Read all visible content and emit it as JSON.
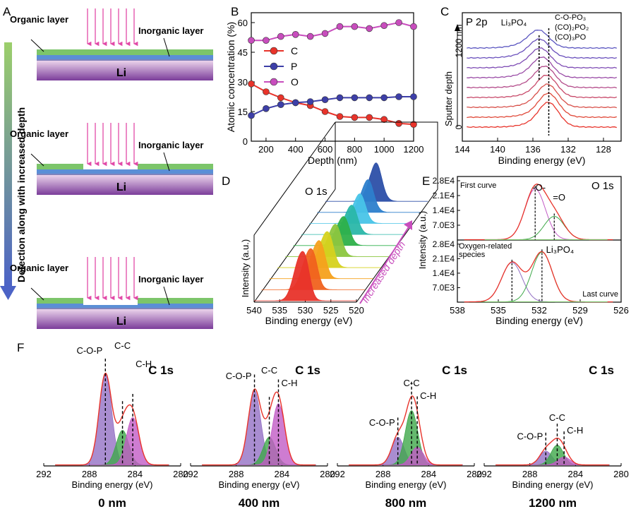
{
  "figure": {
    "panel_letters": {
      "A": "A",
      "B": "B",
      "C": "C",
      "D": "D",
      "E": "E",
      "F": "F"
    },
    "panel_a": {
      "arrow_label": "Detection along with increased depth",
      "organic_label": "Organic layer",
      "inorganic_label": "Inorganic layer",
      "li_label": "Li",
      "colors": {
        "organic": "#7cc56a",
        "inorganic": "#5b8fd6",
        "li_top": "#f0d8ef",
        "li_bottom": "#7c3c9a",
        "probe": "#e24aa8",
        "arrow": "#5b6fc9"
      }
    }
  },
  "chart_data": [
    {
      "panel": "B",
      "type": "line",
      "xlabel": "Depth (nm)",
      "ylabel": "Atomic concentration (%)",
      "xlim": [
        100,
        1200
      ],
      "ylim": [
        0,
        65
      ],
      "xticks": [
        "200",
        "400",
        "600",
        "800",
        "1000",
        "1200"
      ],
      "yticks": [
        "0",
        "15",
        "30",
        "45",
        "60"
      ],
      "legend_position": "left-middle",
      "x": [
        100,
        200,
        300,
        400,
        500,
        600,
        700,
        800,
        900,
        1000,
        1100,
        1200
      ],
      "series": [
        {
          "name": "C",
          "color": "#e8332a",
          "values": [
            29,
            25,
            22,
            19.5,
            18,
            15,
            12.5,
            12,
            12,
            11,
            9,
            8.5
          ]
        },
        {
          "name": "P",
          "color": "#3d3fa8",
          "values": [
            13,
            16.5,
            18.5,
            19.5,
            20,
            21,
            22,
            22,
            22,
            22,
            22.5,
            22.5
          ]
        },
        {
          "name": "O",
          "color": "#c84dbd",
          "values": [
            51,
            51,
            53,
            54,
            53,
            54.5,
            58,
            58,
            57,
            58.5,
            60,
            58
          ]
        }
      ]
    },
    {
      "panel": "C",
      "type": "line",
      "title": "P 2p",
      "xlabel": "Binding energy (eV)",
      "ylabel": "Sputter depth",
      "xlim": [
        144,
        126
      ],
      "xticks": [
        "144",
        "140",
        "136",
        "132",
        "128"
      ],
      "y_annotations": {
        "top": "1200 nm",
        "bottom": "0"
      },
      "peak_labels": {
        "left": "Li₃PO₄",
        "right_1": "C-O-PO₃",
        "right_2": "(CO)₂PO₂",
        "right_3": "(CO)₃PO"
      },
      "dashed_lines_eV": [
        135.3,
        134.2
      ],
      "series_colors": [
        "#e8332a",
        "#e04a3a",
        "#d8504a",
        "#c84a6a",
        "#b44c8a",
        "#9a4ca6",
        "#7e4cb4",
        "#6a50bc",
        "#5b56c0"
      ],
      "peak_centers_eV": [
        134.2,
        134.2,
        134.3,
        134.4,
        134.6,
        134.9,
        135.1,
        135.2,
        135.3
      ]
    },
    {
      "panel": "D",
      "type": "line",
      "title": "O 1s",
      "xlabel": "Binding energy (eV)",
      "ylabel": "Intensity (a.u.)",
      "xlim": [
        540,
        520
      ],
      "xticks": [
        "540",
        "535",
        "530",
        "525",
        "520"
      ],
      "depth_label": "Increased depth",
      "series_colors": [
        "#e8332a",
        "#f0621e",
        "#f5a11c",
        "#d6d21e",
        "#8cc63f",
        "#2eb04a",
        "#2ab7a9",
        "#48c4e8",
        "#2d7fcc",
        "#2c4fa8"
      ],
      "peak_heights": [
        1.0,
        0.82,
        0.75,
        0.7,
        0.62,
        0.55,
        0.55,
        0.55,
        0.6,
        0.7
      ]
    },
    {
      "panel": "E",
      "type": "line",
      "title": "O 1s",
      "xlabel": "Binding energy (eV)",
      "ylabel": "Intensity (a.u.)",
      "xlim": [
        538,
        526
      ],
      "xticks": [
        "538",
        "535",
        "532",
        "529",
        "526"
      ],
      "yticks": [
        "7.0E3",
        "1.4E4",
        "2.1E4",
        "2.8E4"
      ],
      "top": {
        "label": "First curve",
        "peak_labels": [
          "-O-",
          "=O"
        ],
        "peaks_eV": [
          532.3,
          530.9
        ],
        "peak_heights": [
          24000,
          11000
        ]
      },
      "bottom": {
        "label": "Last curve",
        "peak_labels": [
          "Oxygen-related species",
          "Li₃PO₄"
        ],
        "peaks_eV": [
          534.0,
          531.8
        ],
        "peak_heights": [
          19000,
          24000
        ]
      }
    },
    {
      "panel": "F",
      "type": "line",
      "title": "C 1s",
      "xlabel": "Binding energy (eV)",
      "xlim": [
        292,
        280
      ],
      "xticks": [
        "292",
        "288",
        "284",
        "280"
      ],
      "subplots": [
        {
          "depth": "0 nm",
          "envelope_height": 1.0,
          "components": [
            {
              "name": "C-O-P",
              "center": 286.6,
              "height": 0.92,
              "color": "#9370c4"
            },
            {
              "name": "C-C",
              "center": 285.1,
              "height": 0.35,
              "color": "#3fa84a"
            },
            {
              "name": "C-H",
              "center": 284.2,
              "height": 0.48,
              "color": "#c25bc5"
            }
          ]
        },
        {
          "depth": "400 nm",
          "envelope_height": 0.75,
          "components": [
            {
              "name": "C-O-P",
              "center": 286.4,
              "height": 0.75,
              "color": "#9370c4"
            },
            {
              "name": "C-C",
              "center": 285.1,
              "height": 0.28,
              "color": "#3fa84a"
            },
            {
              "name": "C-H",
              "center": 284.3,
              "height": 0.62,
              "color": "#c25bc5"
            }
          ]
        },
        {
          "depth": "800 nm",
          "envelope_height": 0.62,
          "components": [
            {
              "name": "C-O-P",
              "center": 286.7,
              "height": 0.28,
              "color": "#9370c4"
            },
            {
              "name": "C-C",
              "center": 285.5,
              "height": 0.55,
              "color": "#3fa84a"
            },
            {
              "name": "C-H",
              "center": 285.0,
              "height": 0.18,
              "color": "#c25bc5"
            }
          ]
        },
        {
          "depth": "1200 nm",
          "envelope_height": 0.27,
          "components": [
            {
              "name": "C-O-P",
              "center": 286.6,
              "height": 0.14,
              "color": "#9370c4"
            },
            {
              "name": "C-C",
              "center": 285.6,
              "height": 0.2,
              "color": "#3fa84a"
            },
            {
              "name": "C-H",
              "center": 285.0,
              "height": 0.08,
              "color": "#c25bc5"
            }
          ]
        }
      ]
    }
  ]
}
